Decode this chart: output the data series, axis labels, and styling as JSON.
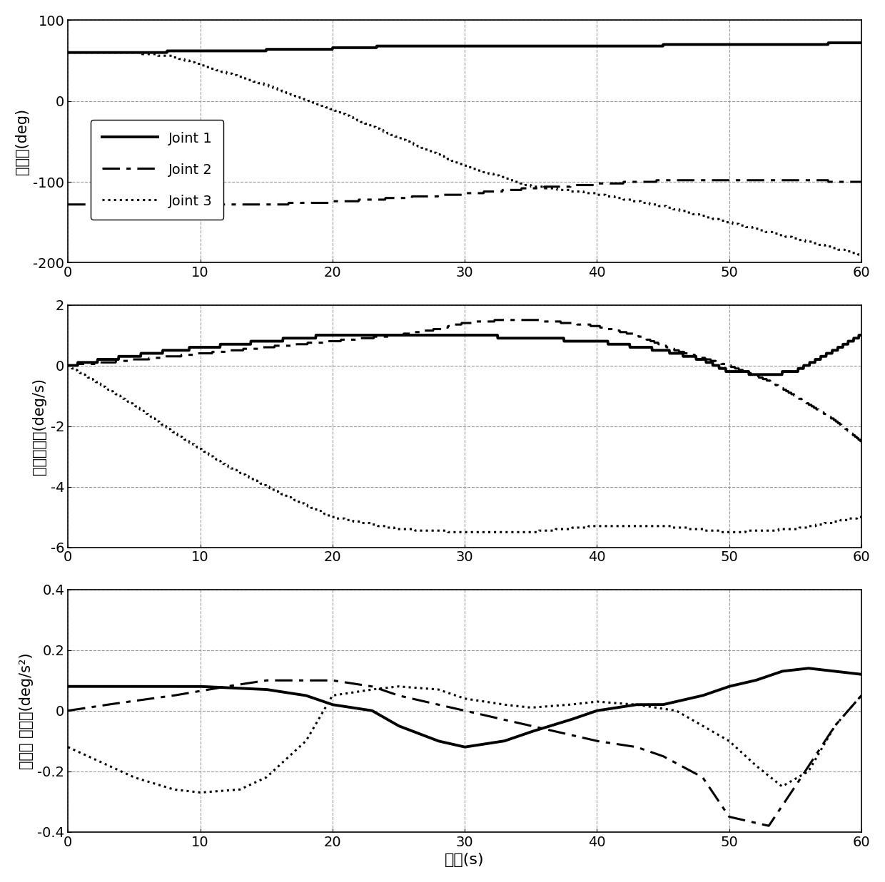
{
  "xlim": [
    0,
    60
  ],
  "plot1": {
    "ylabel": "关节角(deg)",
    "ylim": [
      -200,
      100
    ],
    "yticks": [
      -200,
      -100,
      0,
      100
    ]
  },
  "plot2": {
    "ylabel": "关节角速度(deg/s)",
    "ylim": [
      -6,
      2
    ],
    "yticks": [
      -6,
      -4,
      -2,
      0,
      2
    ]
  },
  "plot3": {
    "ylabel": "关节角 加速度(deg/s²)",
    "ylim": [
      -0.4,
      0.4
    ],
    "yticks": [
      -0.4,
      -0.2,
      0,
      0.2,
      0.4
    ]
  },
  "xlabel": "时间(s)",
  "xticks": [
    0,
    10,
    20,
    30,
    40,
    50,
    60
  ],
  "legend_labels": [
    "Joint 1",
    "Joint 2",
    "Joint 3"
  ],
  "line_color": "black",
  "grid_color": "#999999",
  "background_color": "white"
}
